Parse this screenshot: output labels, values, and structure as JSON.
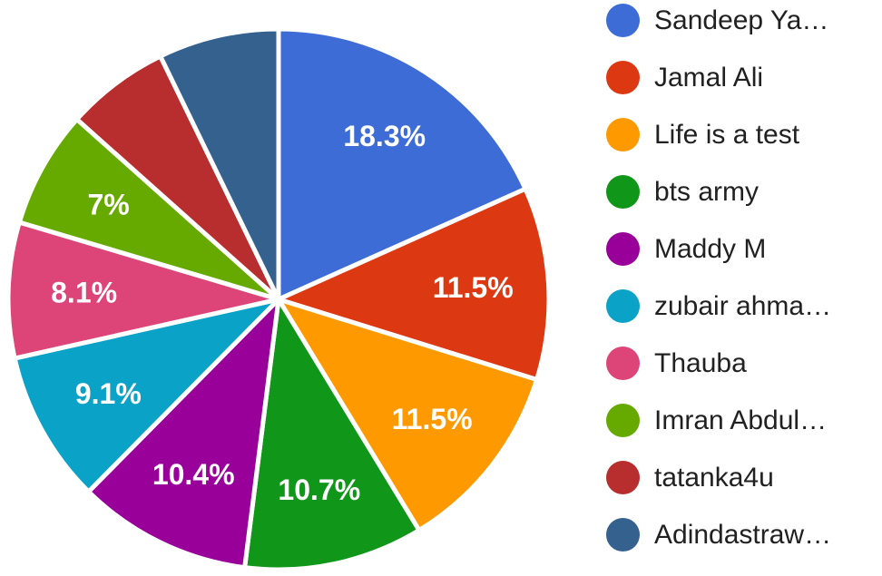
{
  "chart_data": {
    "type": "pie",
    "title": "",
    "legend_position": "right",
    "start_angle_deg": 0,
    "grid": false,
    "slices": [
      {
        "legend_label": "Sandeep Ya…",
        "percent_label": "18.3%",
        "value": 18.3,
        "color": "#3D6CD7"
      },
      {
        "legend_label": "Jamal Ali",
        "percent_label": "11.5%",
        "value": 11.5,
        "color": "#DC3912"
      },
      {
        "legend_label": "Life is a test",
        "percent_label": "11.5%",
        "value": 11.5,
        "color": "#FF9900"
      },
      {
        "legend_label": "bts army",
        "percent_label": "10.7%",
        "value": 10.7,
        "color": "#109618"
      },
      {
        "legend_label": "Maddy M",
        "percent_label": "10.4%",
        "value": 10.4,
        "color": "#990099"
      },
      {
        "legend_label": "zubair ahma…",
        "percent_label": "9.1%",
        "value": 9.1,
        "color": "#0BA2C8"
      },
      {
        "legend_label": "Thauba",
        "percent_label": "8.1%",
        "value": 8.1,
        "color": "#DD4477"
      },
      {
        "legend_label": "Imran Abdul…",
        "percent_label": "7%",
        "value": 7.0,
        "color": "#66AA00"
      },
      {
        "legend_label": "tatanka4u",
        "percent_label": "",
        "value": 6.2,
        "color": "#B82E2E"
      },
      {
        "legend_label": "Adindastraw…",
        "percent_label": "",
        "value": 7.2,
        "color": "#35618F"
      }
    ]
  }
}
